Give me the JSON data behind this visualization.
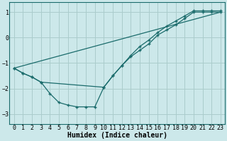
{
  "xlabel": "Humidex (Indice chaleur)",
  "ylabel": "",
  "xlim": [
    -0.5,
    23.5
  ],
  "ylim": [
    -3.4,
    1.4
  ],
  "bg_color": "#cce8ea",
  "grid_color": "#aacccc",
  "line_color": "#1a6b6b",
  "line1_x": [
    0,
    1,
    2,
    3,
    4,
    5,
    6,
    7,
    8,
    9,
    10,
    11,
    12,
    13,
    14,
    15,
    16,
    17,
    18,
    19,
    20,
    21,
    22,
    23
  ],
  "line1_y": [
    -1.2,
    -1.4,
    -1.55,
    -1.75,
    -2.2,
    -2.55,
    -2.65,
    -2.72,
    -2.72,
    -2.72,
    -1.95,
    -1.5,
    -1.1,
    -0.75,
    -0.5,
    -0.25,
    0.1,
    0.3,
    0.5,
    0.75,
    1.0,
    1.0,
    1.0,
    1.0
  ],
  "line2_x": [
    0,
    1,
    2,
    3,
    10,
    11,
    12,
    13,
    14,
    15,
    16,
    17,
    18,
    19,
    20,
    21,
    22,
    23
  ],
  "line2_y": [
    -1.2,
    -1.4,
    -1.55,
    -1.75,
    -1.95,
    -1.5,
    -1.1,
    -0.7,
    -0.35,
    -0.1,
    0.2,
    0.45,
    0.65,
    0.85,
    1.05,
    1.05,
    1.05,
    1.05
  ],
  "line3_x": [
    0,
    23
  ],
  "line3_y": [
    -1.2,
    1.0
  ],
  "xticks": [
    0,
    1,
    2,
    3,
    4,
    5,
    6,
    7,
    8,
    9,
    10,
    11,
    12,
    13,
    14,
    15,
    16,
    17,
    18,
    19,
    20,
    21,
    22,
    23
  ],
  "yticks": [
    -3,
    -2,
    -1,
    0,
    1
  ],
  "tick_fontsize": 6.0,
  "xlabel_fontsize": 7.0
}
